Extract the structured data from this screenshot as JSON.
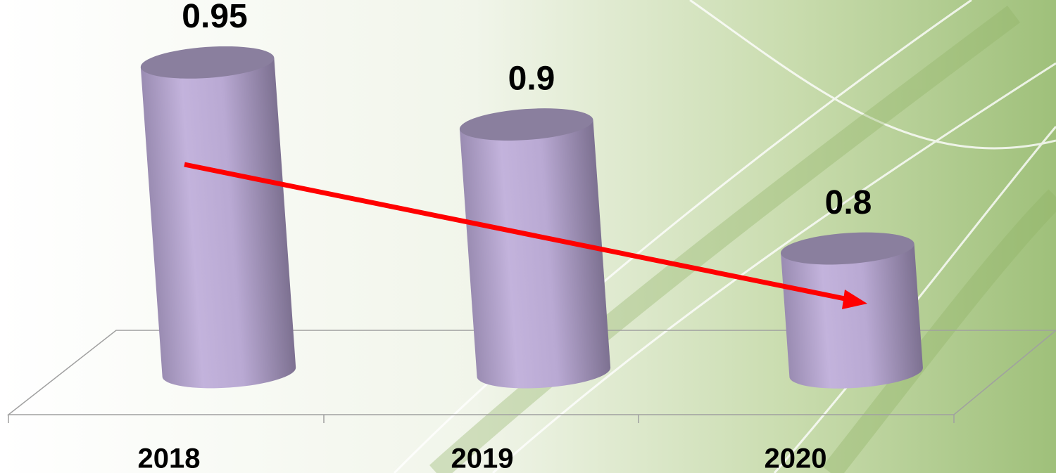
{
  "chart_data": {
    "type": "bar",
    "categories": [
      "2018",
      "2019",
      "2020"
    ],
    "values": [
      0.95,
      0.9,
      0.8
    ],
    "color": "#b9a9d3",
    "ylim": [
      0.7,
      1
    ]
  }
}
